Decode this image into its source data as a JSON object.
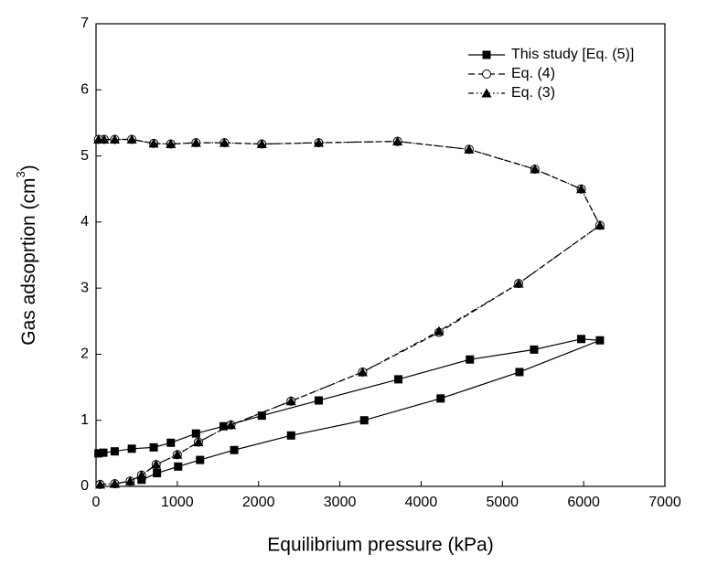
{
  "chart_data": {
    "type": "line",
    "xlabel": "Equilibrium pressure (kPa)",
    "ylabel": [
      "Gas adsoprtion  (cm",
      "3",
      ")"
    ],
    "xlim": [
      0,
      7000
    ],
    "xticks": [
      0,
      1000,
      2000,
      3000,
      4000,
      5000,
      6000,
      7000
    ],
    "ylim": [
      0,
      7
    ],
    "yticks": [
      0,
      1,
      2,
      3,
      4,
      5,
      6,
      7
    ],
    "legend": "upper right",
    "series": [
      {
        "name": "This study [Eq. (5)]",
        "color": "#000000",
        "marker": "square",
        "dash": "solid",
        "x": [
          560,
          750,
          1010,
          1280,
          1700,
          2400,
          3300,
          4240,
          5210,
          6200,
          5970,
          5390,
          4600,
          3720,
          2740,
          2040,
          1570,
          1230,
          920,
          710,
          440,
          230,
          90,
          30
        ],
        "values": [
          0.1,
          0.2,
          0.3,
          0.4,
          0.55,
          0.77,
          1.0,
          1.33,
          1.73,
          2.21,
          2.23,
          2.07,
          1.92,
          1.62,
          1.3,
          1.07,
          0.91,
          0.8,
          0.66,
          0.59,
          0.57,
          0.53,
          0.51,
          0.5
        ]
      },
      {
        "name": "Eq. (4)",
        "color": "#000000",
        "marker": "circle",
        "dash": "dashed",
        "x": [
          50,
          230,
          420,
          560,
          740,
          1000,
          1260,
          1660,
          2400,
          3280,
          4220,
          5200,
          6200,
          5970,
          5400,
          4590,
          3710,
          2740,
          2040,
          1580,
          1230,
          920,
          710,
          440,
          230,
          100,
          30
        ],
        "values": [
          0.03,
          0.04,
          0.08,
          0.17,
          0.33,
          0.48,
          0.67,
          0.93,
          1.29,
          1.73,
          2.33,
          3.07,
          3.95,
          4.5,
          4.8,
          5.1,
          5.22,
          5.2,
          5.18,
          5.2,
          5.2,
          5.18,
          5.19,
          5.25,
          5.25,
          5.25,
          5.25
        ]
      },
      {
        "name": "Eq. (3)",
        "color": "#000000",
        "marker": "triangle",
        "dash": "dashdotdot",
        "x": [
          50,
          230,
          420,
          560,
          740,
          1000,
          1260,
          1660,
          2400,
          3280,
          4220,
          5200,
          6200,
          5970,
          5400,
          4590,
          3710,
          2740,
          2040,
          1580,
          1230,
          920,
          710,
          440,
          230,
          100,
          30
        ],
        "values": [
          0.03,
          0.04,
          0.08,
          0.17,
          0.33,
          0.48,
          0.67,
          0.93,
          1.29,
          1.73,
          2.35,
          3.07,
          3.95,
          4.5,
          4.8,
          5.1,
          5.22,
          5.2,
          5.18,
          5.2,
          5.2,
          5.18,
          5.19,
          5.25,
          5.25,
          5.25,
          5.25
        ]
      }
    ]
  }
}
